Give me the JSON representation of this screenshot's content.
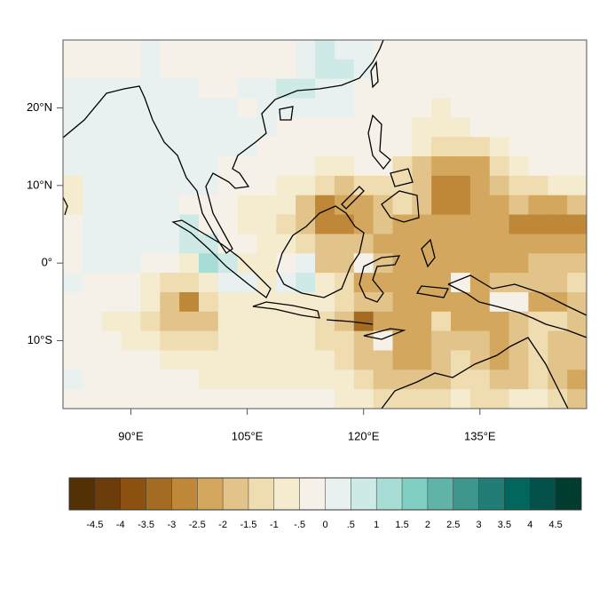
{
  "chart_data": {
    "type": "heatmap",
    "x": [
      82.5,
      85,
      87.5,
      90,
      92.5,
      95,
      97.5,
      100,
      102.5,
      105,
      107.5,
      110,
      112.5,
      115,
      117.5,
      120,
      122.5,
      125,
      127.5,
      130,
      132.5,
      135,
      137.5,
      140,
      142.5,
      145,
      147.5
    ],
    "y": [
      27.5,
      25,
      22.5,
      20,
      17.5,
      15,
      12.5,
      10,
      7.5,
      5,
      2.5,
      0,
      -2.5,
      -5,
      -7.5,
      -10,
      -12.5,
      -15,
      -17.5
    ],
    "xlim": [
      81.25,
      148.75
    ],
    "ylim": [
      -18.75,
      28.75
    ],
    "xticks": [
      {
        "value": 90,
        "label": "90°E"
      },
      {
        "value": 105,
        "label": "105°E"
      },
      {
        "value": 120,
        "label": "120°E"
      },
      {
        "value": 135,
        "label": "135°E"
      }
    ],
    "yticks": [
      {
        "value": 20,
        "label": "20°N"
      },
      {
        "value": 10,
        "label": "10°N"
      },
      {
        "value": 0,
        "label": "0°"
      },
      {
        "value": -10,
        "label": "10°S"
      }
    ],
    "values": [
      [
        -0.25,
        -0.25,
        -0.25,
        -0.25,
        0.25,
        -0.25,
        -0.25,
        -0.25,
        -0.25,
        -0.25,
        -0.25,
        -0.25,
        0.25,
        0.75,
        0.25,
        0.25,
        -0.25,
        -0.25,
        -0.25,
        -0.25,
        -0.25,
        -0.25,
        -0.25,
        -0.25,
        -0.25,
        -0.25,
        -0.25
      ],
      [
        -0.25,
        -0.25,
        -0.25,
        -0.25,
        0.25,
        -0.25,
        -0.25,
        -0.25,
        -0.25,
        -0.25,
        -0.25,
        -0.25,
        0.25,
        0.75,
        0.75,
        0.25,
        -0.25,
        -0.25,
        -0.25,
        -0.25,
        -0.25,
        -0.25,
        -0.25,
        -0.25,
        -0.25,
        -0.25,
        -0.25
      ],
      [
        0.25,
        0.25,
        0.25,
        0.25,
        0.25,
        0.25,
        0.25,
        -0.25,
        -0.25,
        0.25,
        0.25,
        0.75,
        0.75,
        0.25,
        0.25,
        -0.25,
        -0.25,
        -0.25,
        -0.25,
        -0.25,
        -0.25,
        -0.25,
        -0.25,
        -0.25,
        -0.25,
        -0.25,
        -0.25
      ],
      [
        0.25,
        0.25,
        0.25,
        0.25,
        0.25,
        0.25,
        0.25,
        0.25,
        0.25,
        -0.25,
        0.25,
        0.25,
        0.25,
        0.25,
        0.25,
        -0.25,
        -0.25,
        -0.25,
        -0.25,
        -0.75,
        -0.25,
        -0.25,
        -0.25,
        -0.25,
        -0.25,
        -0.25,
        -0.25
      ],
      [
        0.25,
        0.25,
        0.25,
        0.25,
        0.25,
        0.25,
        0.25,
        0.25,
        0.25,
        0.25,
        0.25,
        -0.25,
        -0.25,
        -0.25,
        -0.25,
        -0.25,
        -0.25,
        -0.25,
        -0.75,
        -0.75,
        -0.75,
        -0.25,
        -0.25,
        -0.25,
        -0.25,
        -0.25,
        -0.25
      ],
      [
        0.25,
        0.25,
        0.25,
        0.25,
        0.25,
        0.25,
        0.25,
        0.25,
        0.25,
        0.25,
        -0.25,
        -0.25,
        -0.25,
        -0.25,
        -0.25,
        -0.25,
        -0.25,
        -0.25,
        -0.75,
        -1.25,
        -1.25,
        -1.25,
        -0.75,
        -0.25,
        -0.25,
        -0.25,
        -0.25
      ],
      [
        0.25,
        0.25,
        0.25,
        0.25,
        0.25,
        0.25,
        0.25,
        0.25,
        -0.25,
        -0.25,
        -0.25,
        -0.25,
        -0.25,
        -0.75,
        -0.75,
        -0.25,
        -0.25,
        -1.25,
        -1.75,
        -2.25,
        -2.25,
        -2.25,
        -1.25,
        -0.75,
        -0.25,
        -0.25,
        -0.25
      ],
      [
        -0.75,
        0.25,
        0.25,
        0.25,
        0.25,
        0.25,
        0.25,
        0.25,
        -0.25,
        -0.25,
        -0.25,
        -0.75,
        -0.75,
        -1.25,
        -1.75,
        -1.25,
        -1.25,
        -1.25,
        -1.75,
        -2.75,
        -2.75,
        -2.25,
        -1.75,
        -1.25,
        -1.25,
        -0.75,
        -0.75
      ],
      [
        -0.75,
        0.25,
        0.25,
        0.25,
        0.25,
        0.25,
        -0.25,
        -0.25,
        -0.25,
        -0.75,
        -0.75,
        -0.75,
        -1.75,
        -2.75,
        -2.25,
        -2.25,
        -1.75,
        -1.25,
        -1.75,
        -2.75,
        -2.75,
        -2.25,
        -2.25,
        -1.75,
        -2.25,
        -2.25,
        -1.75
      ],
      [
        -0.25,
        0.25,
        0.25,
        0.25,
        0.25,
        0.25,
        0.75,
        -0.25,
        -0.25,
        -0.75,
        -0.75,
        -1.25,
        -1.75,
        -2.75,
        -2.75,
        -2.25,
        -1.75,
        -2.25,
        -2.25,
        -2.25,
        -2.25,
        -2.25,
        -2.25,
        -2.75,
        -2.75,
        -2.75,
        -2.75
      ],
      [
        -0.25,
        0.25,
        0.25,
        0.25,
        0.25,
        0.25,
        0.75,
        0.75,
        -0.25,
        -0.25,
        -0.75,
        -0.75,
        -1.25,
        -1.75,
        -1.75,
        -1.75,
        -2.25,
        -2.25,
        -2.25,
        -2.25,
        -2.25,
        -2.25,
        -2.25,
        -2.25,
        -2.25,
        -2.25,
        -2.25
      ],
      [
        -0.25,
        0.25,
        0.25,
        0.25,
        -0.25,
        -0.25,
        -0.75,
        1.25,
        0.75,
        -0.75,
        -0.75,
        -0.25,
        0.25,
        -1.75,
        -1.75,
        -0.25,
        -1.75,
        -2.25,
        -2.25,
        -2.25,
        -2.25,
        -2.25,
        -2.25,
        -2.25,
        -1.75,
        -1.75,
        -1.75
      ],
      [
        0.25,
        -0.25,
        -0.25,
        -0.25,
        -0.75,
        -1.25,
        -1.25,
        -0.75,
        0.25,
        0.25,
        -0.75,
        0.25,
        0.75,
        -0.75,
        -1.25,
        -2.25,
        -2.25,
        -2.25,
        -2.25,
        -2.25,
        -0.25,
        -2.25,
        -1.75,
        -1.75,
        -1.75,
        -1.75,
        -1.25
      ],
      [
        -0.25,
        -0.25,
        -0.25,
        -0.25,
        -0.75,
        -1.75,
        -2.75,
        -1.25,
        -0.75,
        -0.75,
        -0.75,
        -0.75,
        -0.75,
        -0.75,
        -1.25,
        -1.75,
        -1.75,
        -2.25,
        -2.25,
        -2.25,
        -2.25,
        -2.25,
        -0.25,
        -0.25,
        -2.25,
        -2.25,
        -1.75
      ],
      [
        -0.25,
        -0.25,
        -0.75,
        -0.75,
        -1.25,
        -1.75,
        -1.75,
        -1.75,
        -0.75,
        -0.75,
        -0.75,
        -0.75,
        -0.75,
        -1.25,
        -1.75,
        -3.25,
        -2.25,
        -2.25,
        -2.25,
        -1.25,
        -2.25,
        -2.25,
        -2.25,
        -1.75,
        -1.25,
        -1.25,
        -1.75
      ],
      [
        -0.25,
        -0.25,
        -0.25,
        -0.75,
        -0.75,
        -1.25,
        -1.25,
        -1.25,
        -0.75,
        -0.75,
        -0.75,
        -0.75,
        -0.75,
        -1.25,
        -1.25,
        -1.75,
        -0.25,
        -2.25,
        -2.25,
        -1.75,
        -1.75,
        -1.75,
        -2.25,
        -1.75,
        -1.25,
        -1.75,
        -1.75
      ],
      [
        -0.25,
        -0.25,
        -0.25,
        -0.25,
        -0.25,
        -0.75,
        -0.75,
        -0.75,
        -0.75,
        -0.75,
        -0.75,
        -0.75,
        -0.75,
        -0.75,
        -1.25,
        -1.75,
        -1.75,
        -2.25,
        -2.25,
        -1.75,
        -1.25,
        -1.75,
        -2.25,
        -1.75,
        -1.25,
        -1.75,
        -1.75
      ],
      [
        0.25,
        -0.25,
        -0.25,
        -0.25,
        -0.25,
        -0.25,
        -0.25,
        -0.75,
        -0.75,
        -0.75,
        -0.75,
        -0.75,
        -0.75,
        -0.75,
        -0.75,
        -1.25,
        -1.75,
        -1.75,
        -1.75,
        -1.75,
        -1.25,
        -1.25,
        -1.75,
        -1.75,
        -1.25,
        -1.75,
        -2.25
      ],
      [
        -0.25,
        -0.25,
        -0.25,
        -0.25,
        -0.25,
        -0.25,
        -0.25,
        -0.25,
        -0.25,
        -0.25,
        -0.25,
        -0.25,
        -0.25,
        -0.25,
        -0.75,
        -0.75,
        -1.25,
        -1.25,
        -1.25,
        -1.25,
        -0.75,
        -1.25,
        -1.25,
        -0.75,
        -0.75,
        -1.25,
        -1.75
      ]
    ],
    "colorbar": {
      "ticks": [
        -4.5,
        -4,
        -3.5,
        -3,
        -2.5,
        -2,
        -1.5,
        -1,
        {
          "value": -0.5,
          "label": "-.5"
        },
        0,
        {
          "value": 0.5,
          "label": ".5"
        },
        1,
        1.5,
        2,
        2.5,
        3,
        3.5,
        4,
        4.5
      ],
      "colors": [
        "#543005",
        "#6b3d0b",
        "#8c5110",
        "#a46c23",
        "#bf8738",
        "#d4a75f",
        "#e2c48a",
        "#efdcb1",
        "#f5ebcf",
        "#f5f1e8",
        "#e8f1ef",
        "#cdeae6",
        "#a8ddd5",
        "#80cdc1",
        "#5fb3a9",
        "#3f968d",
        "#217d75",
        "#01665e",
        "#03514a",
        "#003c30"
      ]
    }
  }
}
